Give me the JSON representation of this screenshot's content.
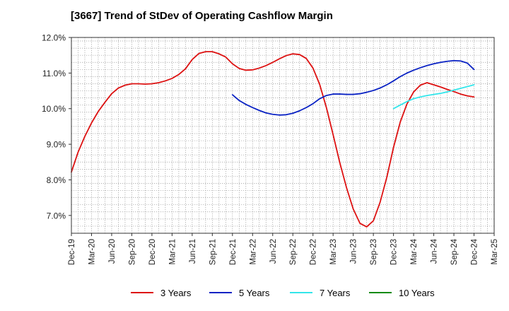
{
  "title": "[3667]  Trend of StDev of Operating Cashflow Margin",
  "colors": {
    "3y": "#dd1111",
    "5y": "#0b23c4",
    "7y": "#33e5ea",
    "10y": "#128b12",
    "grid": "#9a9a9a"
  },
  "chart_data": {
    "type": "line",
    "title": "[3667]  Trend of StDev of Operating Cashflow Margin",
    "xlabel": "",
    "ylabel": "",
    "x_tick_labels": [
      "Dec-19",
      "Mar-20",
      "Jun-20",
      "Sep-20",
      "Dec-20",
      "Mar-21",
      "Jun-21",
      "Sep-21",
      "Dec-21",
      "Mar-22",
      "Jun-22",
      "Sep-22",
      "Dec-22",
      "Mar-23",
      "Jun-23",
      "Sep-23",
      "Dec-23",
      "Mar-24",
      "Jun-24",
      "Sep-24",
      "Dec-24",
      "Mar-25"
    ],
    "y_tick_labels": [
      "7.0%",
      "8.0%",
      "9.0%",
      "10.0%",
      "11.0%",
      "12.0%"
    ],
    "y_ticks": [
      7,
      8,
      9,
      10,
      11,
      12
    ],
    "ylim": [
      6.5,
      12.0
    ],
    "xlim": [
      "2019-12",
      "2025-03"
    ],
    "grid": true,
    "legend_position": "bottom",
    "series": [
      {
        "name": "3 Years",
        "color_key": "3y",
        "x": [
          "2019-12",
          "2020-01",
          "2020-02",
          "2020-03",
          "2020-04",
          "2020-05",
          "2020-06",
          "2020-07",
          "2020-08",
          "2020-09",
          "2020-10",
          "2020-11",
          "2020-12",
          "2021-01",
          "2021-02",
          "2021-03",
          "2021-04",
          "2021-05",
          "2021-06",
          "2021-07",
          "2021-08",
          "2021-09",
          "2021-10",
          "2021-11",
          "2021-12",
          "2022-01",
          "2022-02",
          "2022-03",
          "2022-04",
          "2022-05",
          "2022-06",
          "2022-07",
          "2022-08",
          "2022-09",
          "2022-10",
          "2022-11",
          "2022-12",
          "2023-01",
          "2023-02",
          "2023-03",
          "2023-04",
          "2023-05",
          "2023-06",
          "2023-07",
          "2023-08",
          "2023-09",
          "2023-10",
          "2023-11",
          "2023-12",
          "2024-01",
          "2024-02",
          "2024-03",
          "2024-04",
          "2024-05",
          "2024-06",
          "2024-07",
          "2024-08",
          "2024-09",
          "2024-10",
          "2024-11",
          "2024-12"
        ],
        "values": [
          8.22,
          8.78,
          9.22,
          9.6,
          9.92,
          10.18,
          10.42,
          10.58,
          10.66,
          10.7,
          10.7,
          10.69,
          10.7,
          10.73,
          10.78,
          10.85,
          10.96,
          11.12,
          11.38,
          11.55,
          11.6,
          11.6,
          11.54,
          11.45,
          11.26,
          11.13,
          11.08,
          11.09,
          11.14,
          11.21,
          11.3,
          11.4,
          11.49,
          11.54,
          11.52,
          11.41,
          11.14,
          10.68,
          10.03,
          9.27,
          8.48,
          7.78,
          7.18,
          6.78,
          6.68,
          6.85,
          7.37,
          8.07,
          8.91,
          9.62,
          10.13,
          10.47,
          10.66,
          10.73,
          10.67,
          10.61,
          10.54,
          10.48,
          10.41,
          10.36,
          10.33
        ]
      },
      {
        "name": "5 Years",
        "color_key": "5y",
        "x": [
          "2021-12",
          "2022-01",
          "2022-02",
          "2022-03",
          "2022-04",
          "2022-05",
          "2022-06",
          "2022-07",
          "2022-08",
          "2022-09",
          "2022-10",
          "2022-11",
          "2022-12",
          "2023-01",
          "2023-02",
          "2023-03",
          "2023-04",
          "2023-05",
          "2023-06",
          "2023-07",
          "2023-08",
          "2023-09",
          "2023-10",
          "2023-11",
          "2023-12",
          "2024-01",
          "2024-02",
          "2024-03",
          "2024-04",
          "2024-05",
          "2024-06",
          "2024-07",
          "2024-08",
          "2024-09",
          "2024-10",
          "2024-11",
          "2024-12"
        ],
        "values": [
          10.39,
          10.23,
          10.12,
          10.03,
          9.95,
          9.88,
          9.84,
          9.82,
          9.83,
          9.87,
          9.94,
          10.03,
          10.14,
          10.28,
          10.37,
          10.41,
          10.41,
          10.4,
          10.4,
          10.42,
          10.46,
          10.51,
          10.58,
          10.67,
          10.78,
          10.9,
          11.0,
          11.08,
          11.15,
          11.21,
          11.26,
          11.3,
          11.33,
          11.35,
          11.34,
          11.28,
          11.1
        ]
      },
      {
        "name": "7 Years",
        "color_key": "7y",
        "x": [
          "2023-12",
          "2024-01",
          "2024-02",
          "2024-03",
          "2024-04",
          "2024-05",
          "2024-06",
          "2024-07",
          "2024-08",
          "2024-09",
          "2024-10",
          "2024-11",
          "2024-12"
        ],
        "values": [
          10.0,
          10.1,
          10.2,
          10.28,
          10.33,
          10.37,
          10.4,
          10.43,
          10.47,
          10.52,
          10.57,
          10.62,
          10.67
        ]
      },
      {
        "name": "10 Years",
        "color_key": "10y",
        "x": [],
        "values": []
      }
    ]
  }
}
